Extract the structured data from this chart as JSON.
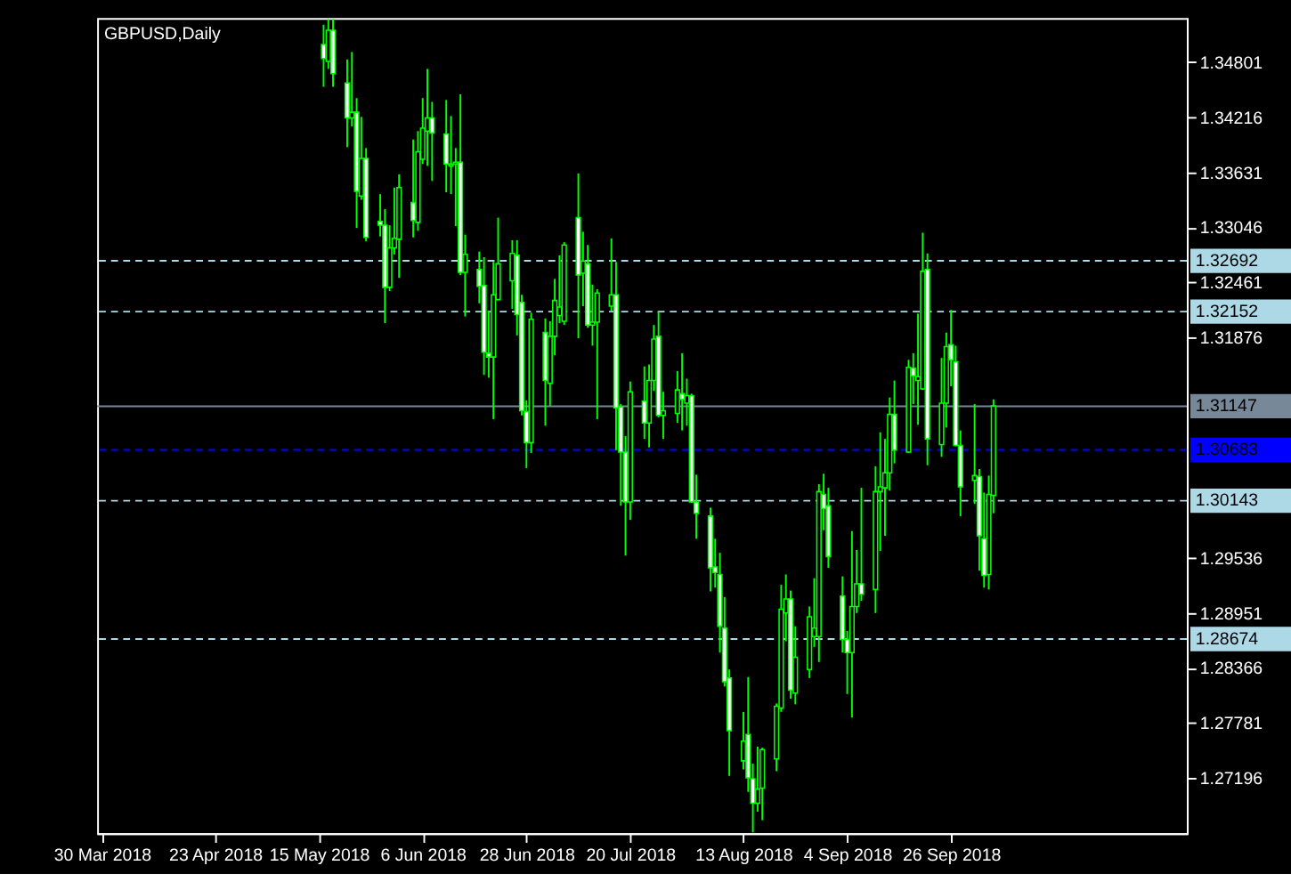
{
  "chart_data": {
    "type": "candlestick",
    "title": "GBPUSD,Daily",
    "x": [
      "2018-05-16",
      "2018-05-17",
      "2018-05-18",
      "2018-05-21",
      "2018-05-22",
      "2018-05-23",
      "2018-05-24",
      "2018-05-25",
      "2018-05-28",
      "2018-05-29",
      "2018-05-30",
      "2018-05-31",
      "2018-06-01",
      "2018-06-04",
      "2018-06-05",
      "2018-06-06",
      "2018-06-07",
      "2018-06-08",
      "2018-06-11",
      "2018-06-12",
      "2018-06-13",
      "2018-06-14",
      "2018-06-15",
      "2018-06-18",
      "2018-06-19",
      "2018-06-20",
      "2018-06-21",
      "2018-06-22",
      "2018-06-25",
      "2018-06-26",
      "2018-06-27",
      "2018-06-28",
      "2018-06-29",
      "2018-07-02",
      "2018-07-03",
      "2018-07-04",
      "2018-07-05",
      "2018-07-06",
      "2018-07-09",
      "2018-07-10",
      "2018-07-11",
      "2018-07-12",
      "2018-07-13",
      "2018-07-16",
      "2018-07-17",
      "2018-07-18",
      "2018-07-19",
      "2018-07-20",
      "2018-07-23",
      "2018-07-24",
      "2018-07-25",
      "2018-07-26",
      "2018-07-27",
      "2018-07-30",
      "2018-07-31",
      "2018-08-01",
      "2018-08-02",
      "2018-08-03",
      "2018-08-06",
      "2018-08-07",
      "2018-08-08",
      "2018-08-09",
      "2018-08-10",
      "2018-08-13",
      "2018-08-14",
      "2018-08-15",
      "2018-08-16",
      "2018-08-17",
      "2018-08-20",
      "2018-08-21",
      "2018-08-22",
      "2018-08-23",
      "2018-08-24",
      "2018-08-27",
      "2018-08-28",
      "2018-08-29",
      "2018-08-30",
      "2018-08-31",
      "2018-09-03",
      "2018-09-04",
      "2018-09-05",
      "2018-09-06",
      "2018-09-07",
      "2018-09-10",
      "2018-09-11",
      "2018-09-12",
      "2018-09-13",
      "2018-09-14",
      "2018-09-17",
      "2018-09-18",
      "2018-09-19",
      "2018-09-20",
      "2018-09-21",
      "2018-09-24",
      "2018-09-25",
      "2018-09-26",
      "2018-09-27",
      "2018-09-28",
      "2018-10-01",
      "2018-10-02",
      "2018-10-03",
      "2018-10-04",
      "2018-10-05"
    ],
    "series": [
      {
        "color": "#00ff00",
        "ohlc": [
          [
            1.3499,
            1.352,
            1.3454,
            1.3484
          ],
          [
            1.3481,
            1.3526,
            1.3473,
            1.3514
          ],
          [
            1.3514,
            1.3526,
            1.3454,
            1.3468
          ],
          [
            1.3458,
            1.3483,
            1.339,
            1.3421
          ],
          [
            1.3421,
            1.3491,
            1.3412,
            1.3427
          ],
          [
            1.3427,
            1.3442,
            1.3304,
            1.3343
          ],
          [
            1.3338,
            1.3422,
            1.3334,
            1.3378
          ],
          [
            1.3378,
            1.3389,
            1.329,
            1.3294
          ],
          [
            1.3311,
            1.334,
            1.3295,
            1.3307
          ],
          [
            1.3307,
            1.3324,
            1.3203,
            1.3241
          ],
          [
            1.3241,
            1.3307,
            1.3237,
            1.3283
          ],
          [
            1.3283,
            1.3347,
            1.3276,
            1.3293
          ],
          [
            1.3292,
            1.3361,
            1.3251,
            1.3347
          ],
          [
            1.3331,
            1.3398,
            1.3294,
            1.3312
          ],
          [
            1.331,
            1.3407,
            1.3301,
            1.3385
          ],
          [
            1.3377,
            1.3442,
            1.3372,
            1.341
          ],
          [
            1.3407,
            1.3473,
            1.337,
            1.3421
          ],
          [
            1.3421,
            1.3438,
            1.3354,
            1.3405
          ],
          [
            1.3404,
            1.344,
            1.3342,
            1.3372
          ],
          [
            1.337,
            1.3423,
            1.334,
            1.3372
          ],
          [
            1.3372,
            1.3389,
            1.3306,
            1.3374
          ],
          [
            1.3374,
            1.3446,
            1.3254,
            1.3257
          ],
          [
            1.3257,
            1.3297,
            1.321,
            1.3276
          ],
          [
            1.326,
            1.3279,
            1.3224,
            1.3242
          ],
          [
            1.3243,
            1.3273,
            1.3148,
            1.3172
          ],
          [
            1.3171,
            1.3216,
            1.3145,
            1.3167
          ],
          [
            1.3167,
            1.3268,
            1.3101,
            1.3233
          ],
          [
            1.3228,
            1.3315,
            1.3228,
            1.3266
          ],
          [
            1.3248,
            1.3291,
            1.3218,
            1.3277
          ],
          [
            1.3275,
            1.3291,
            1.319,
            1.3212
          ],
          [
            1.3225,
            1.3233,
            1.3105,
            1.311
          ],
          [
            1.3109,
            1.3121,
            1.3049,
            1.3076
          ],
          [
            1.3076,
            1.3214,
            1.3065,
            1.3207
          ],
          [
            1.3193,
            1.3208,
            1.3094,
            1.3142
          ],
          [
            1.3139,
            1.3205,
            1.3115,
            1.3189
          ],
          [
            1.3189,
            1.325,
            1.3169,
            1.3227
          ],
          [
            1.3211,
            1.3275,
            1.3203,
            1.322
          ],
          [
            1.3205,
            1.3289,
            1.3201,
            1.3286
          ],
          [
            1.3315,
            1.3362,
            1.3187,
            1.3254
          ],
          [
            1.3256,
            1.33,
            1.3221,
            1.3269
          ],
          [
            1.3266,
            1.3286,
            1.3198,
            1.3201
          ],
          [
            1.3201,
            1.3244,
            1.3179,
            1.3204
          ],
          [
            1.3204,
            1.3239,
            1.3101,
            1.3235
          ],
          [
            1.3221,
            1.3293,
            1.3216,
            1.3233
          ],
          [
            1.3233,
            1.3268,
            1.3068,
            1.3113
          ],
          [
            1.3114,
            1.3117,
            1.3009,
            1.3066
          ],
          [
            1.3066,
            1.3083,
            1.2956,
            1.3013
          ],
          [
            1.3013,
            1.3141,
            1.2994,
            1.313
          ],
          [
            1.312,
            1.3157,
            1.308,
            1.3097
          ],
          [
            1.3097,
            1.3159,
            1.3071,
            1.3142
          ],
          [
            1.3142,
            1.3201,
            1.3131,
            1.3186
          ],
          [
            1.3189,
            1.3215,
            1.3103,
            1.3105
          ],
          [
            1.3105,
            1.313,
            1.308,
            1.311
          ],
          [
            1.3107,
            1.3152,
            1.3097,
            1.3132
          ],
          [
            1.3128,
            1.3171,
            1.3089,
            1.3122
          ],
          [
            1.3118,
            1.3144,
            1.3094,
            1.3126
          ],
          [
            1.3126,
            1.3128,
            1.3012,
            1.3013
          ],
          [
            1.3013,
            1.3042,
            1.2974,
            1.3001
          ],
          [
            1.2998,
            1.3007,
            1.2918,
            1.2943
          ],
          [
            1.2944,
            1.2974,
            1.2922,
            1.2938
          ],
          [
            1.2936,
            1.2959,
            1.2853,
            1.2881
          ],
          [
            1.2879,
            1.2912,
            1.2817,
            1.2822
          ],
          [
            1.2826,
            1.2835,
            1.2722,
            1.277
          ],
          [
            1.2738,
            1.279,
            1.2729,
            1.2759
          ],
          [
            1.2766,
            1.2827,
            1.2705,
            1.272
          ],
          [
            1.2719,
            1.2735,
            1.2662,
            1.2693
          ],
          [
            1.2693,
            1.2753,
            1.2684,
            1.2708
          ],
          [
            1.2709,
            1.2752,
            1.2675,
            1.275
          ],
          [
            1.274,
            1.2799,
            1.2727,
            1.2796
          ],
          [
            1.2794,
            1.2925,
            1.279,
            1.2899
          ],
          [
            1.2895,
            1.2936,
            1.2865,
            1.291
          ],
          [
            1.291,
            1.2919,
            1.2804,
            1.2813
          ],
          [
            1.281,
            1.2881,
            1.2798,
            1.2848
          ],
          [
            1.2835,
            1.2902,
            1.2826,
            1.2891
          ],
          [
            1.287,
            1.2932,
            1.2859,
            1.2879
          ],
          [
            1.287,
            1.3032,
            1.2843,
            1.3024
          ],
          [
            1.3021,
            1.3043,
            1.2983,
            1.3006
          ],
          [
            1.3009,
            1.3028,
            1.2943,
            1.2955
          ],
          [
            1.2913,
            1.2934,
            1.2853,
            1.2867
          ],
          [
            1.2867,
            1.2876,
            1.2809,
            1.2853
          ],
          [
            1.2853,
            1.2982,
            1.2784,
            1.2902
          ],
          [
            1.2902,
            1.2962,
            1.2895,
            1.2926
          ],
          [
            1.2926,
            1.3028,
            1.2908,
            1.2915
          ],
          [
            1.292,
            1.3051,
            1.2895,
            1.3024
          ],
          [
            1.3024,
            1.3087,
            1.2961,
            1.3029
          ],
          [
            1.3028,
            1.308,
            1.2977,
            1.3044
          ],
          [
            1.3044,
            1.3124,
            1.3025,
            1.3106
          ],
          [
            1.3106,
            1.3142,
            1.3054,
            1.3068
          ],
          [
            1.3066,
            1.3164,
            1.3065,
            1.3156
          ],
          [
            1.3155,
            1.3171,
            1.3117,
            1.3147
          ],
          [
            1.3142,
            1.3213,
            1.3095,
            1.3146
          ],
          [
            1.3133,
            1.3299,
            1.3132,
            1.3258
          ],
          [
            1.326,
            1.3277,
            1.3052,
            1.308
          ],
          [
            1.3074,
            1.3166,
            1.3061,
            1.3118
          ],
          [
            1.3118,
            1.3193,
            1.3092,
            1.3178
          ],
          [
            1.318,
            1.3217,
            1.3136,
            1.3164
          ],
          [
            1.3162,
            1.3179,
            1.3072,
            1.3073
          ],
          [
            1.3073,
            1.3089,
            1.2998,
            1.3029
          ],
          [
            1.3036,
            1.3117,
            1.3011,
            1.3041
          ],
          [
            1.304,
            1.3048,
            1.294,
            1.2977
          ],
          [
            1.2974,
            1.3023,
            1.2922,
            1.2935
          ],
          [
            1.2936,
            1.3041,
            1.292,
            1.3021
          ],
          [
            1.302,
            1.3122,
            1.3001,
            1.3115
          ]
        ]
      }
    ],
    "xlim": [
      "2018-03-29",
      "2018-11-15"
    ],
    "xticks": [
      {
        "value": "2018-03-30",
        "label": "30 Mar 2018"
      },
      {
        "value": "2018-04-23",
        "label": "23 Apr 2018"
      },
      {
        "value": "2018-05-15",
        "label": "15 May 2018"
      },
      {
        "value": "2018-06-06",
        "label": "6 Jun 2018"
      },
      {
        "value": "2018-06-28",
        "label": "28 Jun 2018"
      },
      {
        "value": "2018-07-20",
        "label": "20 Jul 2018"
      },
      {
        "value": "2018-08-13",
        "label": "13 Aug 2018"
      },
      {
        "value": "2018-09-04",
        "label": "4 Sep 2018"
      },
      {
        "value": "2018-09-26",
        "label": "26 Sep 2018"
      }
    ],
    "ylim": [
      1.2661,
      1.3527
    ],
    "yticks": [
      1.34801,
      1.34216,
      1.33631,
      1.33046,
      1.32461,
      1.31876,
      1.29536,
      1.28951,
      1.28366,
      1.27781,
      1.27196
    ],
    "ref_lines": [
      {
        "axis": "y",
        "value": 1.32692,
        "label": "1.32692",
        "color": "#add8e6",
        "line_style": "dashed"
      },
      {
        "axis": "y",
        "value": 1.32152,
        "label": "1.32152",
        "color": "#add8e6",
        "line_style": "dashed"
      },
      {
        "axis": "y",
        "value": 1.31147,
        "label": "1.31147",
        "color": "#778899",
        "line_style": "solid"
      },
      {
        "axis": "y",
        "value": 1.30683,
        "label": "1.30683",
        "color": "#0000ff",
        "line_style": "dashed"
      },
      {
        "axis": "y",
        "value": 1.30143,
        "label": "1.30143",
        "color": "#add8e6",
        "line_style": "dashed"
      },
      {
        "axis": "y",
        "value": 1.28674,
        "label": "1.28674",
        "color": "#add8e6",
        "line_style": "dashed"
      }
    ],
    "grid": false
  }
}
